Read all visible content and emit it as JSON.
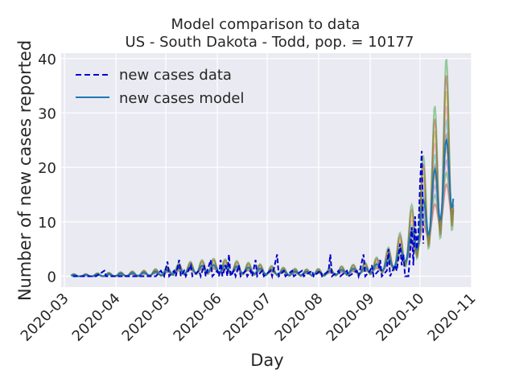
{
  "chart_data": {
    "type": "line",
    "title": "Model comparison to data",
    "subtitle": "US - South Dakota - Todd, pop. = 10177",
    "xlabel": "Day",
    "ylabel": "Number of new cases reported",
    "xlim": [
      "2020-02-28",
      "2020-11-01"
    ],
    "ylim": [
      -2,
      41
    ],
    "x_tick_labels": [
      "2020-03",
      "2020-04",
      "2020-05",
      "2020-06",
      "2020-07",
      "2020-08",
      "2020-09",
      "2020-10",
      "2020-11"
    ],
    "x_tick_dates": [
      "2020-03-01",
      "2020-04-01",
      "2020-05-01",
      "2020-06-01",
      "2020-07-01",
      "2020-08-01",
      "2020-09-01",
      "2020-10-01",
      "2020-11-01"
    ],
    "y_ticks": [
      0,
      10,
      20,
      30,
      40
    ],
    "grid": true,
    "legend_position": "top-left",
    "colors": {
      "background": "#eaeaf2",
      "grid": "#ffffff",
      "data": "#0000cc",
      "model": "#1f77b4",
      "ensemble": [
        "#d62728",
        "#2ca02c",
        "#9467bd",
        "#ff7f0e",
        "#8c564b",
        "#17becf",
        "#e377c2",
        "#bcbd22"
      ]
    },
    "series": [
      {
        "name": "new cases data",
        "style": "dashed",
        "points": [
          [
            "2020-03-06",
            0
          ],
          [
            "2020-03-20",
            0
          ],
          [
            "2020-03-25",
            1
          ],
          [
            "2020-03-26",
            0
          ],
          [
            "2020-04-25",
            0
          ],
          [
            "2020-04-28",
            1
          ],
          [
            "2020-04-30",
            0
          ],
          [
            "2020-05-02",
            2.7
          ],
          [
            "2020-05-03",
            0
          ],
          [
            "2020-05-06",
            1
          ],
          [
            "2020-05-07",
            0
          ],
          [
            "2020-05-09",
            3
          ],
          [
            "2020-05-10",
            0
          ],
          [
            "2020-05-12",
            1
          ],
          [
            "2020-05-13",
            0
          ],
          [
            "2020-05-16",
            2
          ],
          [
            "2020-05-17",
            0
          ],
          [
            "2020-05-21",
            1
          ],
          [
            "2020-05-22",
            0
          ],
          [
            "2020-05-24",
            2
          ],
          [
            "2020-05-25",
            0
          ],
          [
            "2020-05-28",
            3
          ],
          [
            "2020-05-29",
            0
          ],
          [
            "2020-06-01",
            1
          ],
          [
            "2020-06-02",
            0
          ],
          [
            "2020-06-03",
            3
          ],
          [
            "2020-06-04",
            0
          ],
          [
            "2020-06-06",
            2
          ],
          [
            "2020-06-07",
            0
          ],
          [
            "2020-06-08",
            4
          ],
          [
            "2020-06-09",
            0
          ],
          [
            "2020-06-11",
            1
          ],
          [
            "2020-06-12",
            0
          ],
          [
            "2020-06-14",
            2
          ],
          [
            "2020-06-15",
            0
          ],
          [
            "2020-06-18",
            1
          ],
          [
            "2020-06-19",
            0
          ],
          [
            "2020-06-21",
            1
          ],
          [
            "2020-06-22",
            0
          ],
          [
            "2020-06-24",
            3
          ],
          [
            "2020-06-25",
            0
          ],
          [
            "2020-06-28",
            1
          ],
          [
            "2020-06-29",
            0
          ],
          [
            "2020-07-03",
            1
          ],
          [
            "2020-07-04",
            0
          ],
          [
            "2020-07-07",
            4
          ],
          [
            "2020-07-08",
            0
          ],
          [
            "2020-07-11",
            1
          ],
          [
            "2020-07-12",
            0
          ],
          [
            "2020-07-16",
            1
          ],
          [
            "2020-07-17",
            0
          ],
          [
            "2020-07-22",
            1
          ],
          [
            "2020-07-23",
            0
          ],
          [
            "2020-07-28",
            1
          ],
          [
            "2020-07-29",
            0
          ],
          [
            "2020-08-02",
            1
          ],
          [
            "2020-08-03",
            0
          ],
          [
            "2020-08-07",
            1
          ],
          [
            "2020-08-08",
            4
          ],
          [
            "2020-08-09",
            0
          ],
          [
            "2020-08-13",
            1
          ],
          [
            "2020-08-14",
            0
          ],
          [
            "2020-08-18",
            1
          ],
          [
            "2020-08-19",
            0
          ],
          [
            "2020-08-24",
            1
          ],
          [
            "2020-08-25",
            0
          ],
          [
            "2020-08-28",
            4
          ],
          [
            "2020-08-29",
            0
          ],
          [
            "2020-09-01",
            1
          ],
          [
            "2020-09-02",
            2
          ],
          [
            "2020-09-03",
            0
          ],
          [
            "2020-09-06",
            1
          ],
          [
            "2020-09-07",
            3
          ],
          [
            "2020-09-08",
            0
          ],
          [
            "2020-09-11",
            1
          ],
          [
            "2020-09-12",
            5
          ],
          [
            "2020-09-13",
            0
          ],
          [
            "2020-09-16",
            2
          ],
          [
            "2020-09-17",
            1
          ],
          [
            "2020-09-19",
            6
          ],
          [
            "2020-09-20",
            2
          ],
          [
            "2020-09-21",
            4
          ],
          [
            "2020-09-22",
            0
          ],
          [
            "2020-09-24",
            0
          ],
          [
            "2020-09-25",
            4
          ],
          [
            "2020-09-26",
            9
          ],
          [
            "2020-09-27",
            2
          ],
          [
            "2020-09-28",
            11
          ],
          [
            "2020-09-29",
            5
          ],
          [
            "2020-09-30",
            8
          ],
          [
            "2020-10-01",
            17
          ],
          [
            "2020-10-02",
            23
          ],
          [
            "2020-10-03",
            6
          ]
        ]
      },
      {
        "name": "new cases model",
        "style": "solid",
        "points": [
          [
            "2020-03-05",
            0.1
          ],
          [
            "2020-03-10",
            0.05
          ],
          [
            "2020-03-15",
            0.1
          ],
          [
            "2020-03-20",
            0.15
          ],
          [
            "2020-03-25",
            0.2
          ],
          [
            "2020-03-30",
            0.2
          ],
          [
            "2020-04-04",
            0.25
          ],
          [
            "2020-04-09",
            0.3
          ],
          [
            "2020-04-14",
            0.35
          ],
          [
            "2020-04-19",
            0.4
          ],
          [
            "2020-04-24",
            0.5
          ],
          [
            "2020-04-29",
            0.6
          ],
          [
            "2020-05-04",
            0.8
          ],
          [
            "2020-05-09",
            1.0
          ],
          [
            "2020-05-14",
            1.1
          ],
          [
            "2020-05-19",
            1.2
          ],
          [
            "2020-05-24",
            1.3
          ],
          [
            "2020-05-29",
            1.4
          ],
          [
            "2020-06-03",
            1.4
          ],
          [
            "2020-06-08",
            1.3
          ],
          [
            "2020-06-13",
            1.2
          ],
          [
            "2020-06-18",
            1.1
          ],
          [
            "2020-06-23",
            1.0
          ],
          [
            "2020-06-28",
            0.9
          ],
          [
            "2020-07-03",
            0.8
          ],
          [
            "2020-07-08",
            0.7
          ],
          [
            "2020-07-13",
            0.6
          ],
          [
            "2020-07-18",
            0.55
          ],
          [
            "2020-07-23",
            0.5
          ],
          [
            "2020-07-28",
            0.5
          ],
          [
            "2020-08-02",
            0.55
          ],
          [
            "2020-08-07",
            0.6
          ],
          [
            "2020-08-12",
            0.7
          ],
          [
            "2020-08-17",
            0.8
          ],
          [
            "2020-08-22",
            0.9
          ],
          [
            "2020-08-27",
            1.0
          ],
          [
            "2020-09-01",
            1.2
          ],
          [
            "2020-09-06",
            1.6
          ],
          [
            "2020-09-11",
            2.2
          ],
          [
            "2020-09-16",
            3.0
          ],
          [
            "2020-09-21",
            4.0
          ],
          [
            "2020-09-26",
            6.0
          ],
          [
            "2020-10-01",
            9.0
          ],
          [
            "2020-10-06",
            12.0
          ],
          [
            "2020-10-11",
            15.0
          ],
          [
            "2020-10-16",
            18.0
          ],
          [
            "2020-10-21",
            20.0
          ]
        ]
      }
    ]
  }
}
